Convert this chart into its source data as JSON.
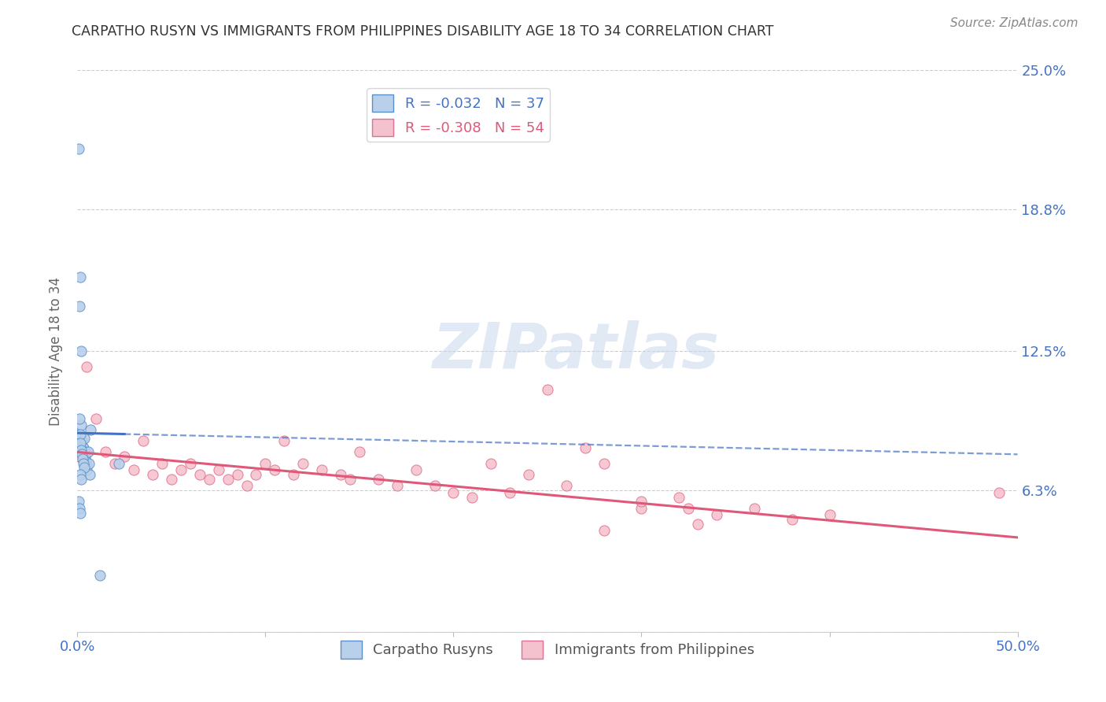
{
  "title": "CARPATHO RUSYN VS IMMIGRANTS FROM PHILIPPINES DISABILITY AGE 18 TO 34 CORRELATION CHART",
  "source_text": "Source: ZipAtlas.com",
  "ylabel": "Disability Age 18 to 34",
  "xlim": [
    0.0,
    50.0
  ],
  "ylim": [
    0.0,
    25.0
  ],
  "series1_name": "Carpatho Rusyns",
  "series1_R": -0.032,
  "series1_N": 37,
  "series1_color": "#b8d0ea",
  "series1_edge_color": "#5b8fc9",
  "series1_line_color": "#4472c4",
  "series2_name": "Immigrants from Philippines",
  "series2_R": -0.308,
  "series2_N": 54,
  "series2_color": "#f4c2ce",
  "series2_edge_color": "#e07090",
  "series2_line_color": "#e05878",
  "watermark": "ZIPatlas",
  "background_color": "#ffffff",
  "grid_color": "#cccccc",
  "title_color": "#333333",
  "axis_label_color": "#666666",
  "tick_color": "#4472c4",
  "series1_x": [
    0.05,
    0.08,
    0.12,
    0.15,
    0.18,
    0.2,
    0.22,
    0.25,
    0.28,
    0.3,
    0.32,
    0.35,
    0.38,
    0.4,
    0.42,
    0.45,
    0.48,
    0.5,
    0.55,
    0.6,
    0.65,
    0.7,
    0.1,
    0.14,
    0.16,
    0.19,
    0.23,
    0.27,
    0.31,
    0.36,
    0.05,
    0.09,
    0.13,
    0.17,
    0.21,
    1.2,
    2.2
  ],
  "series1_y": [
    21.5,
    8.8,
    14.5,
    15.8,
    12.5,
    9.2,
    8.5,
    8.3,
    8.0,
    7.8,
    8.2,
    8.6,
    7.4,
    7.8,
    8.0,
    7.6,
    7.4,
    7.2,
    8.0,
    7.5,
    7.0,
    9.0,
    9.5,
    8.8,
    8.4,
    8.1,
    7.9,
    7.7,
    7.5,
    7.3,
    5.8,
    5.5,
    5.3,
    7.0,
    6.8,
    2.5,
    7.5
  ],
  "series2_x": [
    0.05,
    0.2,
    0.5,
    1.0,
    1.5,
    2.0,
    2.5,
    3.0,
    3.5,
    4.0,
    4.5,
    5.0,
    5.5,
    6.0,
    6.5,
    7.0,
    7.5,
    8.0,
    8.5,
    9.0,
    9.5,
    10.0,
    11.0,
    12.0,
    13.0,
    14.0,
    15.0,
    16.0,
    17.0,
    18.0,
    19.0,
    20.0,
    21.0,
    22.0,
    23.0,
    24.0,
    25.0,
    26.0,
    27.0,
    28.0,
    30.0,
    32.0,
    34.0,
    36.0,
    38.0,
    40.0,
    28.0,
    30.0,
    32.5,
    33.0,
    10.5,
    11.5,
    49.0,
    14.5
  ],
  "series2_y": [
    7.8,
    8.2,
    11.8,
    9.5,
    8.0,
    7.5,
    7.8,
    7.2,
    8.5,
    7.0,
    7.5,
    6.8,
    7.2,
    7.5,
    7.0,
    6.8,
    7.2,
    6.8,
    7.0,
    6.5,
    7.0,
    7.5,
    8.5,
    7.5,
    7.2,
    7.0,
    8.0,
    6.8,
    6.5,
    7.2,
    6.5,
    6.2,
    6.0,
    7.5,
    6.2,
    7.0,
    10.8,
    6.5,
    8.2,
    7.5,
    5.5,
    6.0,
    5.2,
    5.5,
    5.0,
    5.2,
    4.5,
    5.8,
    5.5,
    4.8,
    7.2,
    7.0,
    6.2,
    6.8
  ],
  "s1_trendline_x0": 0.0,
  "s1_trendline_x1": 50.0,
  "s1_trendline_y0": 8.85,
  "s1_trendline_y1": 7.9,
  "s1_solid_end_x": 2.5,
  "s2_trendline_x0": 0.0,
  "s2_trendline_x1": 50.0,
  "s2_trendline_y0": 8.0,
  "s2_trendline_y1": 4.2
}
